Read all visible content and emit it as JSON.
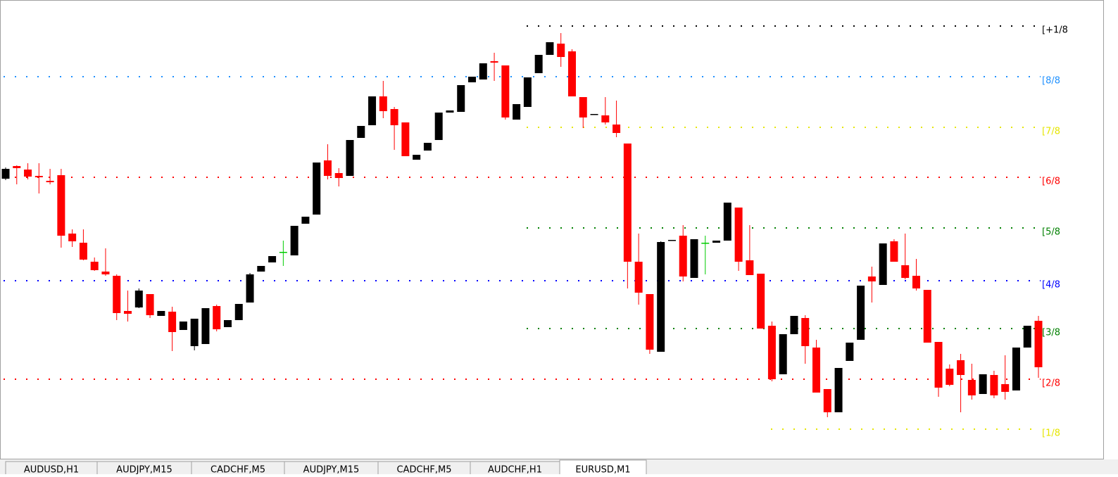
{
  "chart_data": {
    "type": "candlestick",
    "ylim": [
      0,
      650
    ],
    "up_color": "#000000",
    "down_color": "#ff0000",
    "doji_color": "#00cc00",
    "open": [
      396,
      414,
      409,
      400,
      393,
      401,
      318,
      305,
      278,
      264,
      258,
      208,
      213,
      232,
      201,
      207,
      181,
      158,
      161,
      215,
      185,
      195,
      220,
      264,
      277,
      292,
      287,
      332,
      345,
      422,
      404,
      400,
      454,
      472,
      513,
      495,
      476,
      423,
      436,
      451,
      490,
      491,
      533,
      537,
      563,
      557,
      480,
      498,
      546,
      572,
      588,
      577,
      512,
      488,
      486,
      473,
      446,
      278,
      232,
      150,
      309,
      315,
      255,
      305,
      305,
      308,
      355,
      280,
      261,
      187,
      118,
      175,
      198,
      156,
      97,
      64,
      137,
      167,
      257,
      245,
      307,
      273,
      258,
      238,
      164,
      126,
      138,
      110,
      90,
      117,
      104,
      95,
      156,
      194
    ],
    "high": [
      412,
      415,
      418,
      418,
      410,
      410,
      324,
      324,
      284,
      297,
      260,
      237,
      240,
      232,
      208,
      214,
      193,
      197,
      212,
      217,
      195,
      218,
      262,
      272,
      286,
      308,
      329,
      342,
      419,
      445,
      411,
      451,
      471,
      513,
      535,
      498,
      476,
      430,
      447,
      490,
      493,
      529,
      541,
      560,
      575,
      557,
      502,
      540,
      572,
      590,
      603,
      580,
      512,
      488,
      512,
      507,
      446,
      318,
      232,
      307,
      309,
      330,
      310,
      315,
      308,
      362,
      355,
      330,
      261,
      193,
      175,
      201,
      202,
      167,
      97,
      127,
      163,
      244,
      271,
      304,
      310,
      318,
      282,
      238,
      164,
      132,
      147,
      133,
      118,
      123,
      145,
      156,
      187,
      201
    ],
    "low": [
      394,
      388,
      395,
      375,
      388,
      298,
      299,
      280,
      265,
      258,
      195,
      193,
      212,
      198,
      201,
      151,
      181,
      152,
      161,
      179,
      185,
      195,
      220,
      264,
      277,
      272,
      287,
      332,
      345,
      395,
      385,
      400,
      454,
      472,
      482,
      437,
      428,
      423,
      436,
      451,
      490,
      491,
      533,
      537,
      535,
      480,
      480,
      498,
      546,
      572,
      555,
      513,
      468,
      488,
      473,
      455,
      240,
      217,
      147,
      150,
      309,
      250,
      255,
      260,
      305,
      308,
      265,
      259,
      183,
      108,
      118,
      175,
      133,
      92,
      57,
      64,
      137,
      167,
      220,
      245,
      278,
      253,
      237,
      163,
      86,
      101,
      64,
      82,
      90,
      84,
      82,
      95,
      156,
      113
    ],
    "close": [
      410,
      411,
      399,
      398,
      391,
      315,
      307,
      281,
      266,
      260,
      205,
      204,
      237,
      202,
      208,
      178,
      193,
      197,
      212,
      182,
      195,
      218,
      260,
      272,
      286,
      292,
      329,
      342,
      419,
      400,
      397,
      451,
      471,
      513,
      492,
      472,
      428,
      430,
      447,
      490,
      493,
      529,
      541,
      560,
      561,
      483,
      502,
      540,
      572,
      590,
      569,
      513,
      483,
      488,
      476,
      461,
      278,
      234,
      153,
      306,
      309,
      257,
      310,
      305,
      308,
      362,
      278,
      259,
      183,
      111,
      175,
      201,
      158,
      92,
      64,
      127,
      163,
      244,
      250,
      304,
      278,
      255,
      240,
      163,
      99,
      103,
      117,
      88,
      118,
      88,
      93,
      156,
      187,
      128
    ],
    "levels": [
      {
        "label": "[+1/8",
        "value": 613,
        "color": "#000000"
      },
      {
        "label": "[8/8",
        "value": 541,
        "color": "#1e90ff"
      },
      {
        "label": "[7/8",
        "value": 469,
        "color": "#e6e600"
      },
      {
        "label": "[6/8",
        "value": 398,
        "color": "#ff0000"
      },
      {
        "label": "[5/8",
        "value": 326,
        "color": "#008000"
      },
      {
        "label": "[4/8",
        "value": 251,
        "color": "#0000ff"
      },
      {
        "label": "[3/8",
        "value": 183,
        "color": "#008000"
      },
      {
        "label": "[2/8",
        "value": 111,
        "color": "#ff0000"
      },
      {
        "label": "[1/8",
        "value": 40,
        "color": "#e6e600"
      }
    ]
  },
  "tabs": [
    "AUDUSD,H1",
    "AUDJPY,M15",
    "CADCHF,M5",
    "AUDJPY,M15",
    "CADCHF,M5",
    "AUDCHF,H1",
    "EURUSD,M1"
  ],
  "active_tab": 6
}
